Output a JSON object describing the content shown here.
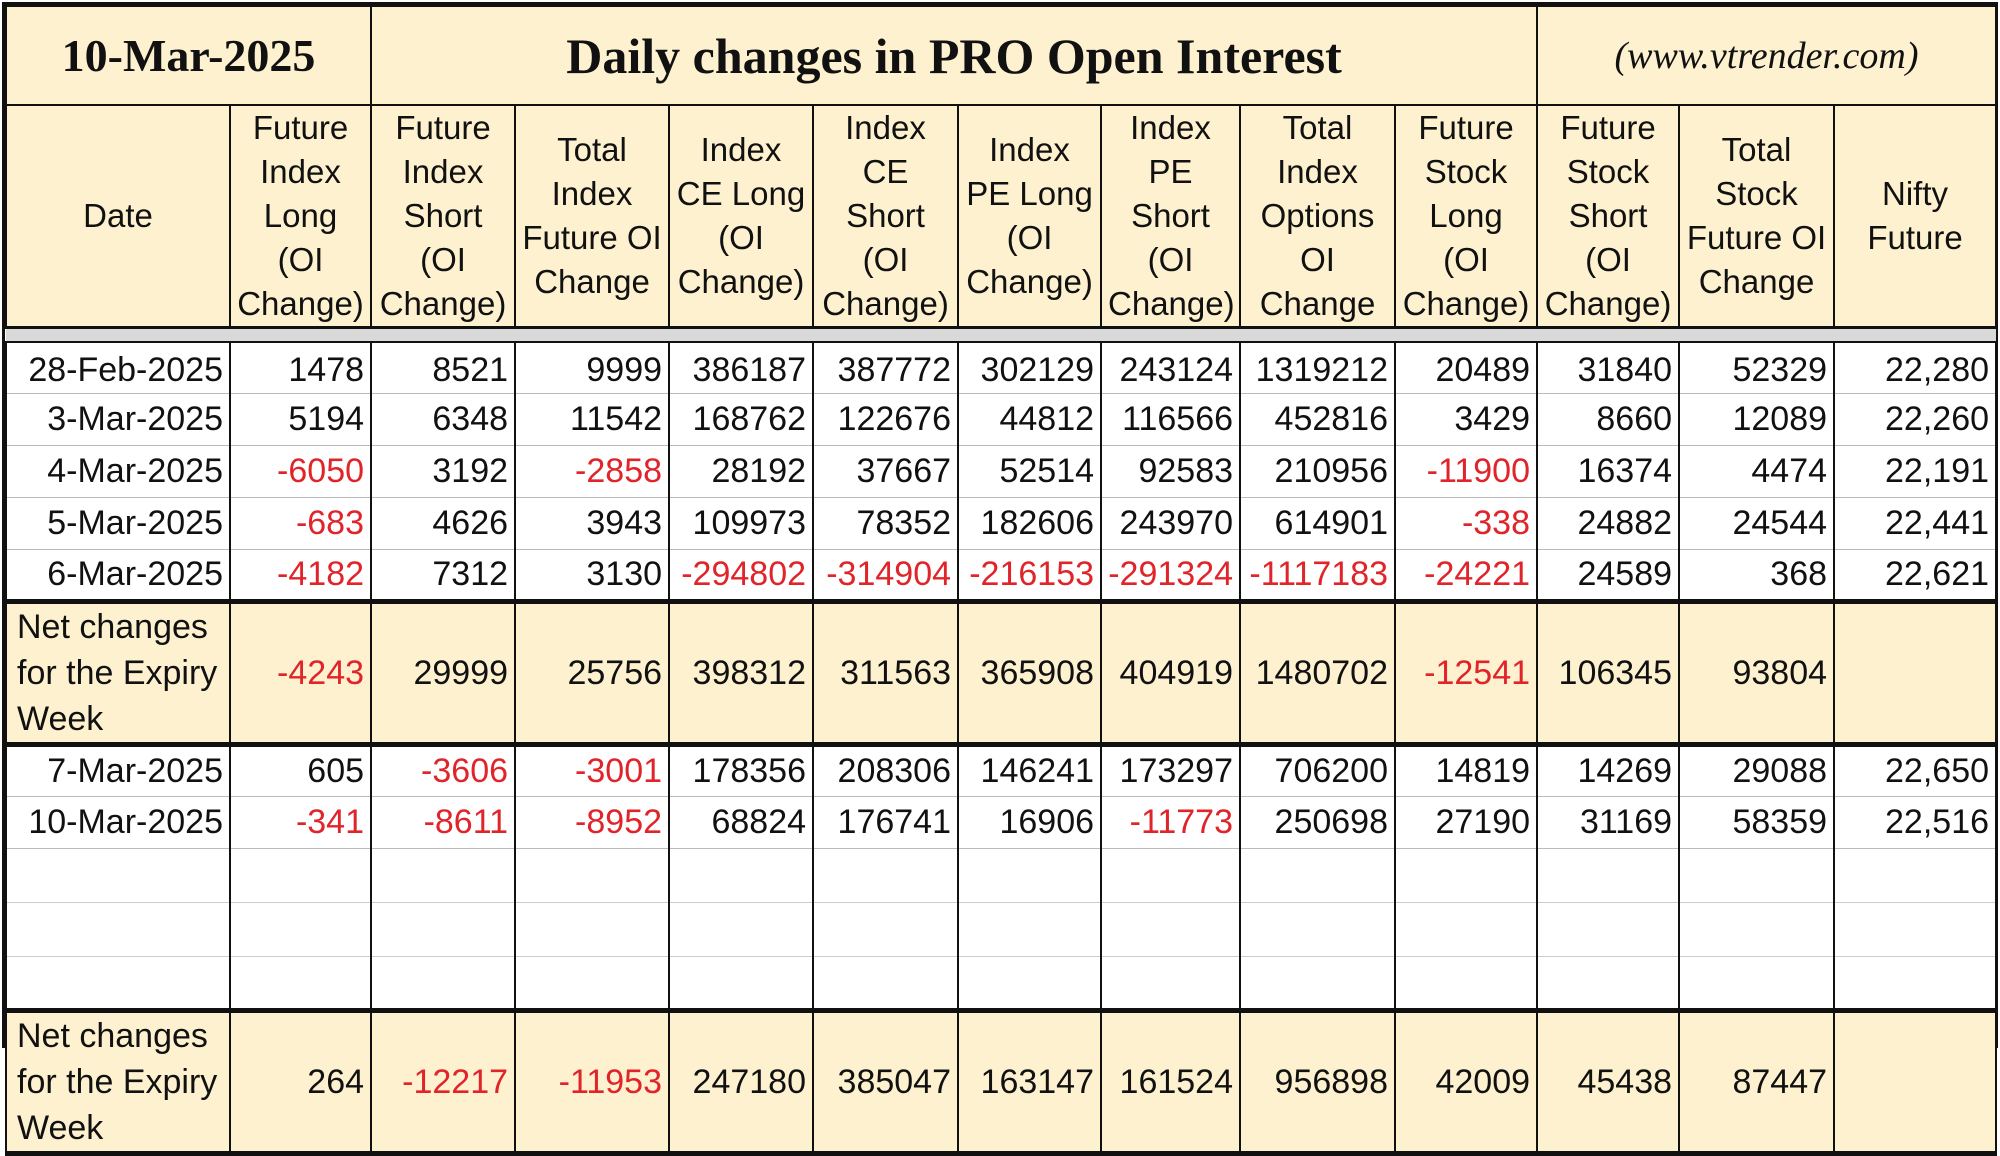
{
  "header": {
    "date": "10-Mar-2025",
    "title": "Daily changes in PRO Open Interest",
    "website": "(www.vtrender.com)"
  },
  "columns": [
    "Date",
    "Future Index Long (OI Change)",
    "Future Index Short (OI Change)",
    "Total Index Future OI Change",
    "Index CE Long (OI Change)",
    "Index CE Short (OI Change)",
    "Index PE Long (OI Change)",
    "Index PE Short (OI Change)",
    "Total Index Options OI Change",
    "Future Stock Long (OI Change)",
    "Future Stock Short (OI Change)",
    "Total Stock Future OI Change",
    "Nifty Future"
  ],
  "section1": {
    "rows": [
      [
        "28-Feb-2025",
        "1478",
        "8521",
        "9999",
        "386187",
        "387772",
        "302129",
        "243124",
        "1319212",
        "20489",
        "31840",
        "52329",
        "22,280"
      ],
      [
        "3-Mar-2025",
        "5194",
        "6348",
        "11542",
        "168762",
        "122676",
        "44812",
        "116566",
        "452816",
        "3429",
        "8660",
        "12089",
        "22,260"
      ],
      [
        "4-Mar-2025",
        "-6050",
        "3192",
        "-2858",
        "28192",
        "37667",
        "52514",
        "92583",
        "210956",
        "-11900",
        "16374",
        "4474",
        "22,191"
      ],
      [
        "5-Mar-2025",
        "-683",
        "4626",
        "3943",
        "109973",
        "78352",
        "182606",
        "243970",
        "614901",
        "-338",
        "24882",
        "24544",
        "22,441"
      ],
      [
        "6-Mar-2025",
        "-4182",
        "7312",
        "3130",
        "-294802",
        "-314904",
        "-216153",
        "-291324",
        "-1117183",
        "-24221",
        "24589",
        "368",
        "22,621"
      ]
    ],
    "net": [
      "Net changes for the Expiry Week",
      "-4243",
      "29999",
      "25756",
      "398312",
      "311563",
      "365908",
      "404919",
      "1480702",
      "-12541",
      "106345",
      "93804",
      ""
    ]
  },
  "section2": {
    "rows": [
      [
        "7-Mar-2025",
        "605",
        "-3606",
        "-3001",
        "178356",
        "208306",
        "146241",
        "173297",
        "706200",
        "14819",
        "14269",
        "29088",
        "22,650"
      ],
      [
        "10-Mar-2025",
        "-341",
        "-8611",
        "-8952",
        "68824",
        "176741",
        "16906",
        "-11773",
        "250698",
        "27190",
        "31169",
        "58359",
        "22,516"
      ]
    ],
    "blank_rows": 3,
    "net": [
      "Net changes for the Expiry Week",
      "264",
      "-12217",
      "-11953",
      "247180",
      "385047",
      "163147",
      "161524",
      "956898",
      "42009",
      "45438",
      "87447",
      ""
    ]
  },
  "colors": {
    "negative": "#e0242a",
    "header_bg": "#fdf1cf",
    "gap_bg": "#d9d9d9"
  }
}
